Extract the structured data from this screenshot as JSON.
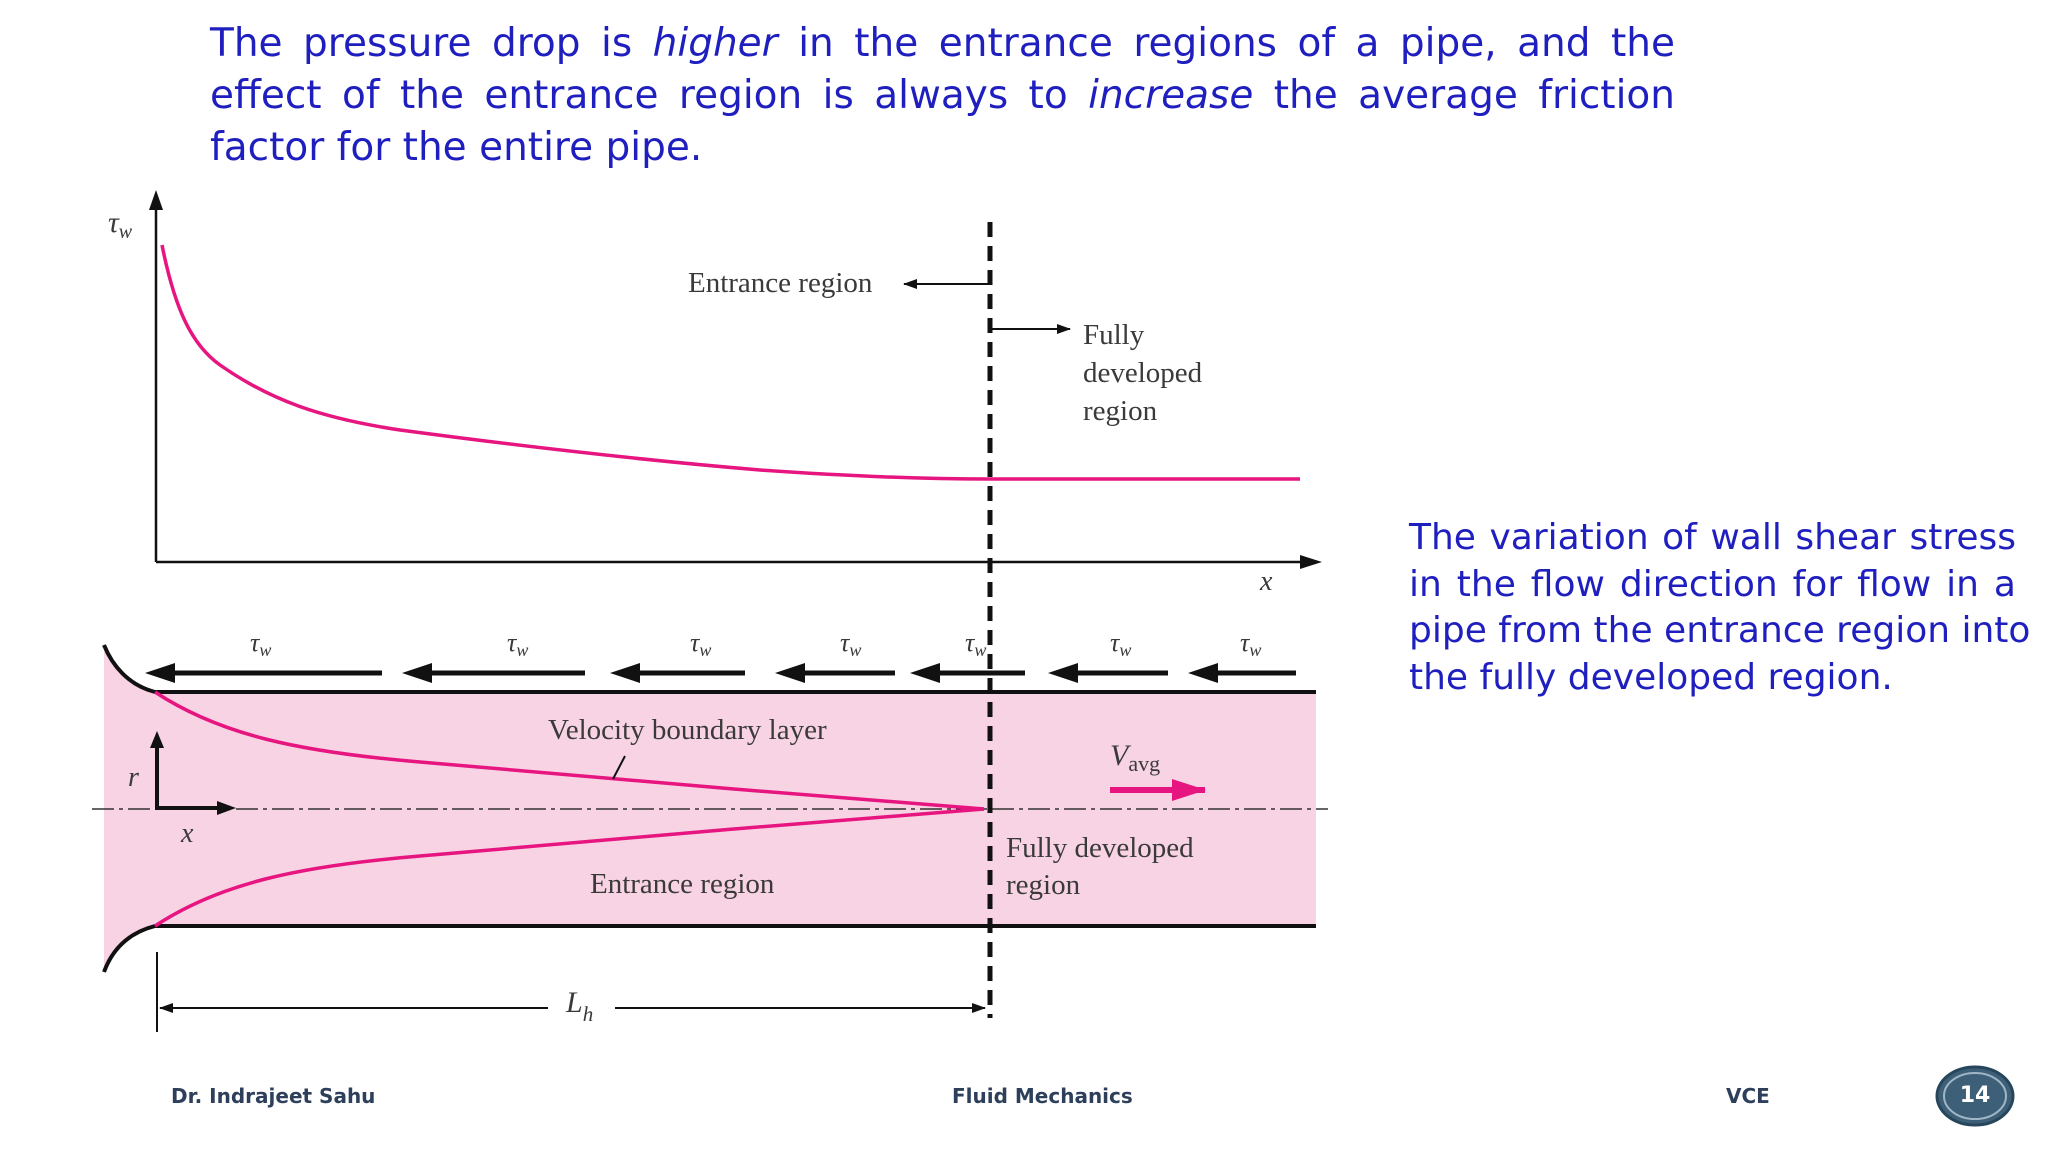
{
  "slide": {
    "title_lines": [
      [
        "The pressure drop is ",
        "higher",
        " in the entrance regions of a pipe, and the"
      ],
      [
        "effect of the entrance region is always to ",
        "increase",
        " the average friction"
      ],
      [
        "factor for the entire pipe.",
        "",
        ""
      ]
    ],
    "caption_lines": [
      "The variation of wall shear stress",
      "in the flow direction for flow in a",
      "pipe from the entrance region into",
      "the fully developed region."
    ]
  },
  "diagram": {
    "graph": {
      "y_axis_label": "τ",
      "y_axis_sub": "w",
      "x_axis_label": "x",
      "entrance_label": "Entrance region",
      "fully_developed_lines": [
        "Fully",
        "developed",
        "region"
      ]
    },
    "pipe": {
      "tau_label": "τ",
      "tau_sub": "w",
      "boundary_layer_label": "Velocity boundary layer",
      "vavg_main": "V",
      "vavg_sub": "avg",
      "r_label": "r",
      "x_label": "x",
      "entrance_label": "Entrance region",
      "fully_developed_lines": [
        "Fully developed",
        "region"
      ],
      "length_main": "L",
      "length_sub": "h"
    },
    "colors": {
      "curve": "#e6157f",
      "pipe_fill": "#f8d3e3",
      "text": "#3a3a3a"
    }
  },
  "footer": {
    "author": "Dr. Indrajeet Sahu",
    "course": "Fluid Mechanics",
    "institute": "VCE",
    "page": "14"
  }
}
